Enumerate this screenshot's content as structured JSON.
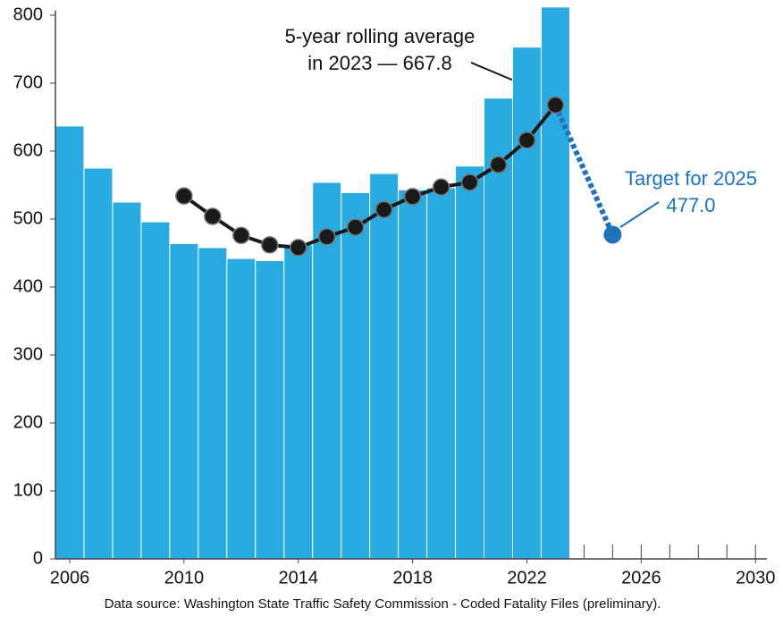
{
  "chart_data": {
    "type": "bar",
    "ylim": [
      0,
      815
    ],
    "yticks": [
      0,
      100,
      200,
      300,
      400,
      500,
      600,
      700,
      800
    ],
    "xlim": [
      2005.5,
      2030.4
    ],
    "xticks": [
      2006,
      2010,
      2014,
      2018,
      2022,
      2026,
      2030
    ],
    "xticks_minor": [
      2024,
      2025,
      2026,
      2027,
      2028,
      2029,
      2030
    ],
    "bars": {
      "color": "#29abe2",
      "x": [
        2006,
        2007,
        2008,
        2009,
        2010,
        2011,
        2012,
        2013,
        2014,
        2015,
        2016,
        2017,
        2018,
        2019,
        2020,
        2021,
        2022,
        2023
      ],
      "values": [
        637,
        575,
        525,
        496,
        464,
        458,
        442,
        439,
        462,
        554,
        539,
        567,
        543,
        546,
        578,
        678,
        753,
        812
      ]
    },
    "rolling": {
      "color": "#1a1a1a",
      "x": [
        2010,
        2011,
        2012,
        2013,
        2014,
        2015,
        2016,
        2017,
        2018,
        2019,
        2020,
        2021,
        2022,
        2023
      ],
      "values": [
        534,
        504,
        476,
        462,
        458,
        474,
        488,
        514,
        533,
        547,
        554,
        580,
        616,
        667.8
      ]
    },
    "target": {
      "color": "#1f72b8",
      "x": 2025,
      "value": 477.0
    },
    "annotations": {
      "rolling": [
        "5-year rolling average",
        "in 2023 — 667.8"
      ],
      "target": [
        "Target for 2025",
        "477.0"
      ]
    },
    "source": "Data source: Washington State Traffic Safety Commission - Coded Fatality Files (preliminary)."
  }
}
